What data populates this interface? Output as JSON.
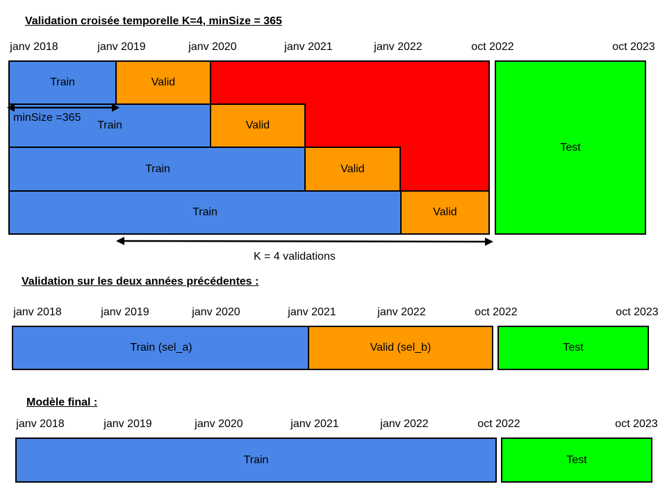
{
  "colors": {
    "train": "#4a86e8",
    "valid": "#ff9900",
    "unused": "#ff0000",
    "test": "#00ff00",
    "outline": "#000000"
  },
  "section1": {
    "title": "Validation croisée temporelle K=4, minSize = 365",
    "dates": [
      "janv 2018",
      "janv 2019",
      "janv 2020",
      "janv 2021",
      "janv 2022",
      "oct 2022",
      "oct 2023"
    ],
    "folds": [
      {
        "train": "Train",
        "valid": "Valid"
      },
      {
        "train": "Train",
        "valid": "Valid"
      },
      {
        "train": "Train",
        "valid": "Valid"
      },
      {
        "train": "Train",
        "valid": "Valid"
      }
    ],
    "test": "Test",
    "minsize_label": "minSize =365",
    "k_label": "K = 4 validations"
  },
  "section2": {
    "title": "Validation sur les deux années précédentes :",
    "dates": [
      "janv 2018",
      "janv 2019",
      "janv 2020",
      "janv 2021",
      "janv 2022",
      "oct 2022",
      "oct 2023"
    ],
    "train": "Train (sel_a)",
    "valid": "Valid (sel_b)",
    "test": "Test"
  },
  "section3": {
    "title": "Modèle final :",
    "dates": [
      "janv 2018",
      "janv 2019",
      "janv 2020",
      "janv 2021",
      "janv 2022",
      "oct 2022",
      "oct 2023"
    ],
    "train": "Train",
    "test": "Test"
  }
}
